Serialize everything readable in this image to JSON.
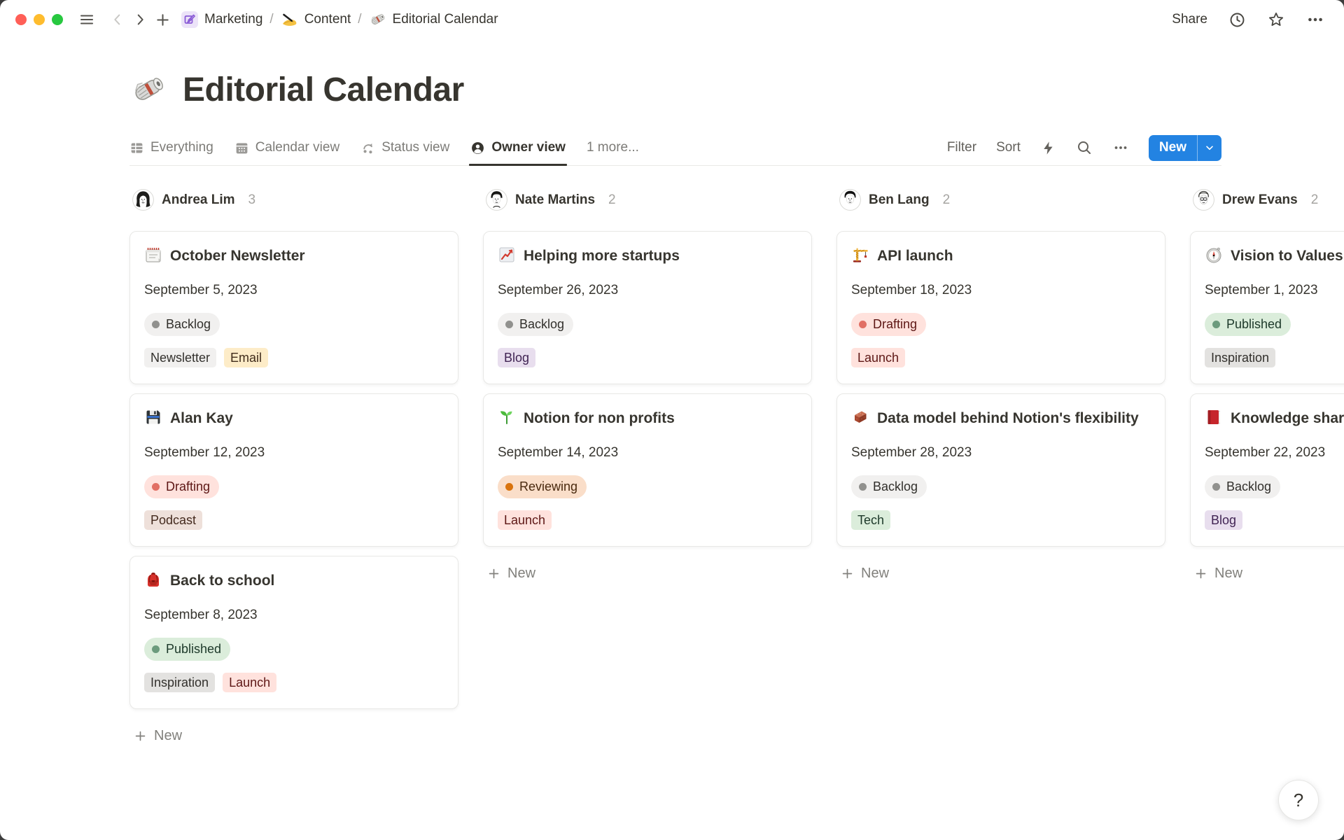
{
  "chrome": {
    "window_buttons": [
      "close",
      "minimize",
      "zoom"
    ],
    "breadcrumbs": [
      {
        "icon": "marketing-icon",
        "label": "Marketing"
      },
      {
        "icon": "writing-hand-icon",
        "label": "Content"
      },
      {
        "icon": "newspaper-icon",
        "label": "Editorial Calendar"
      }
    ],
    "separator": "/",
    "share_label": "Share"
  },
  "page": {
    "icon": "newspaper-icon",
    "title": "Editorial Calendar"
  },
  "views": {
    "tabs": [
      {
        "icon": "table-icon",
        "label": "Everything",
        "active": false
      },
      {
        "icon": "calendar-icon",
        "label": "Calendar view",
        "active": false
      },
      {
        "icon": "cycle-icon",
        "label": "Status view",
        "active": false
      },
      {
        "icon": "person-icon",
        "label": "Owner view",
        "active": true
      }
    ],
    "more_label": "1 more...",
    "controls": {
      "filter": "Filter",
      "sort": "Sort",
      "new_label": "New"
    }
  },
  "palette": {
    "accent_blue": "#2383E2",
    "status": {
      "gray": {
        "bg": "#F1F0EF",
        "dot": "#91918E",
        "text": "#32302C"
      },
      "red": {
        "bg": "#FFE2DD",
        "dot": "#E16F64",
        "text": "#5D1715"
      },
      "green": {
        "bg": "#DBEDDB",
        "dot": "#6C9B7D",
        "text": "#1C3829"
      },
      "orange": {
        "bg": "#FADEC9",
        "dot": "#D9730D",
        "text": "#49290E"
      }
    },
    "tag": {
      "light-gray": {
        "bg": "#F1F0EF",
        "text": "#32302C"
      },
      "gray": {
        "bg": "#E3E2E0",
        "text": "#32302C"
      },
      "yellow": {
        "bg": "#FDECC8",
        "text": "#402C1B"
      },
      "purple": {
        "bg": "#E8DEEE",
        "text": "#412454"
      },
      "brown": {
        "bg": "#EEE0DA",
        "text": "#442A1E"
      },
      "red": {
        "bg": "#FFE2DD",
        "text": "#5D1715"
      },
      "green": {
        "bg": "#DBEDDB",
        "text": "#1C3829"
      }
    }
  },
  "board": {
    "new_card_label": "New",
    "columns": [
      {
        "owner": "Andrea Lim",
        "count": "3",
        "avatar": "avatar-andrea",
        "cards": [
          {
            "icon": "spiral-calendar-icon",
            "title": "October Newsletter",
            "date": "September 5, 2023",
            "status": {
              "label": "Backlog",
              "color": "gray"
            },
            "tags": [
              {
                "label": "Newsletter",
                "color": "light-gray"
              },
              {
                "label": "Email",
                "color": "yellow"
              }
            ]
          },
          {
            "icon": "floppy-disk-icon",
            "title": "Alan Kay",
            "date": "September 12, 2023",
            "status": {
              "label": "Drafting",
              "color": "red"
            },
            "tags": [
              {
                "label": "Podcast",
                "color": "brown"
              }
            ]
          },
          {
            "icon": "backpack-icon",
            "title": "Back to school",
            "date": "September 8, 2023",
            "status": {
              "label": "Published",
              "color": "green"
            },
            "tags": [
              {
                "label": "Inspiration",
                "color": "gray"
              },
              {
                "label": "Launch",
                "color": "red"
              }
            ]
          }
        ]
      },
      {
        "owner": "Nate Martins",
        "count": "2",
        "avatar": "avatar-nate",
        "cards": [
          {
            "icon": "chart-increasing-icon",
            "title": "Helping more startups",
            "date": "September 26, 2023",
            "status": {
              "label": "Backlog",
              "color": "gray"
            },
            "tags": [
              {
                "label": "Blog",
                "color": "purple"
              }
            ]
          },
          {
            "icon": "seedling-icon",
            "title": "Notion for non profits",
            "date": "September 14, 2023",
            "status": {
              "label": "Reviewing",
              "color": "orange"
            },
            "tags": [
              {
                "label": "Launch",
                "color": "red"
              }
            ]
          }
        ]
      },
      {
        "owner": "Ben Lang",
        "count": "2",
        "avatar": "avatar-ben",
        "cards": [
          {
            "icon": "crane-icon",
            "title": "API launch",
            "date": "September 18, 2023",
            "status": {
              "label": "Drafting",
              "color": "red"
            },
            "tags": [
              {
                "label": "Launch",
                "color": "red"
              }
            ]
          },
          {
            "icon": "brick-icon",
            "title": "Data model behind Notion's flexibility",
            "date": "September 28, 2023",
            "status": {
              "label": "Backlog",
              "color": "gray"
            },
            "tags": [
              {
                "label": "Tech",
                "color": "green"
              }
            ]
          }
        ]
      },
      {
        "owner": "Drew Evans",
        "count": "2",
        "avatar": "avatar-drew",
        "cards": [
          {
            "icon": "compass-icon",
            "title": "Vision to Values",
            "date": "September 1, 2023",
            "status": {
              "label": "Published",
              "color": "green"
            },
            "tags": [
              {
                "label": "Inspiration",
                "color": "gray"
              }
            ]
          },
          {
            "icon": "red-book-icon",
            "title": "Knowledge sharing",
            "date": "September 22, 2023",
            "status": {
              "label": "Backlog",
              "color": "gray"
            },
            "tags": [
              {
                "label": "Blog",
                "color": "purple"
              }
            ]
          }
        ]
      }
    ]
  },
  "help_label": "?"
}
